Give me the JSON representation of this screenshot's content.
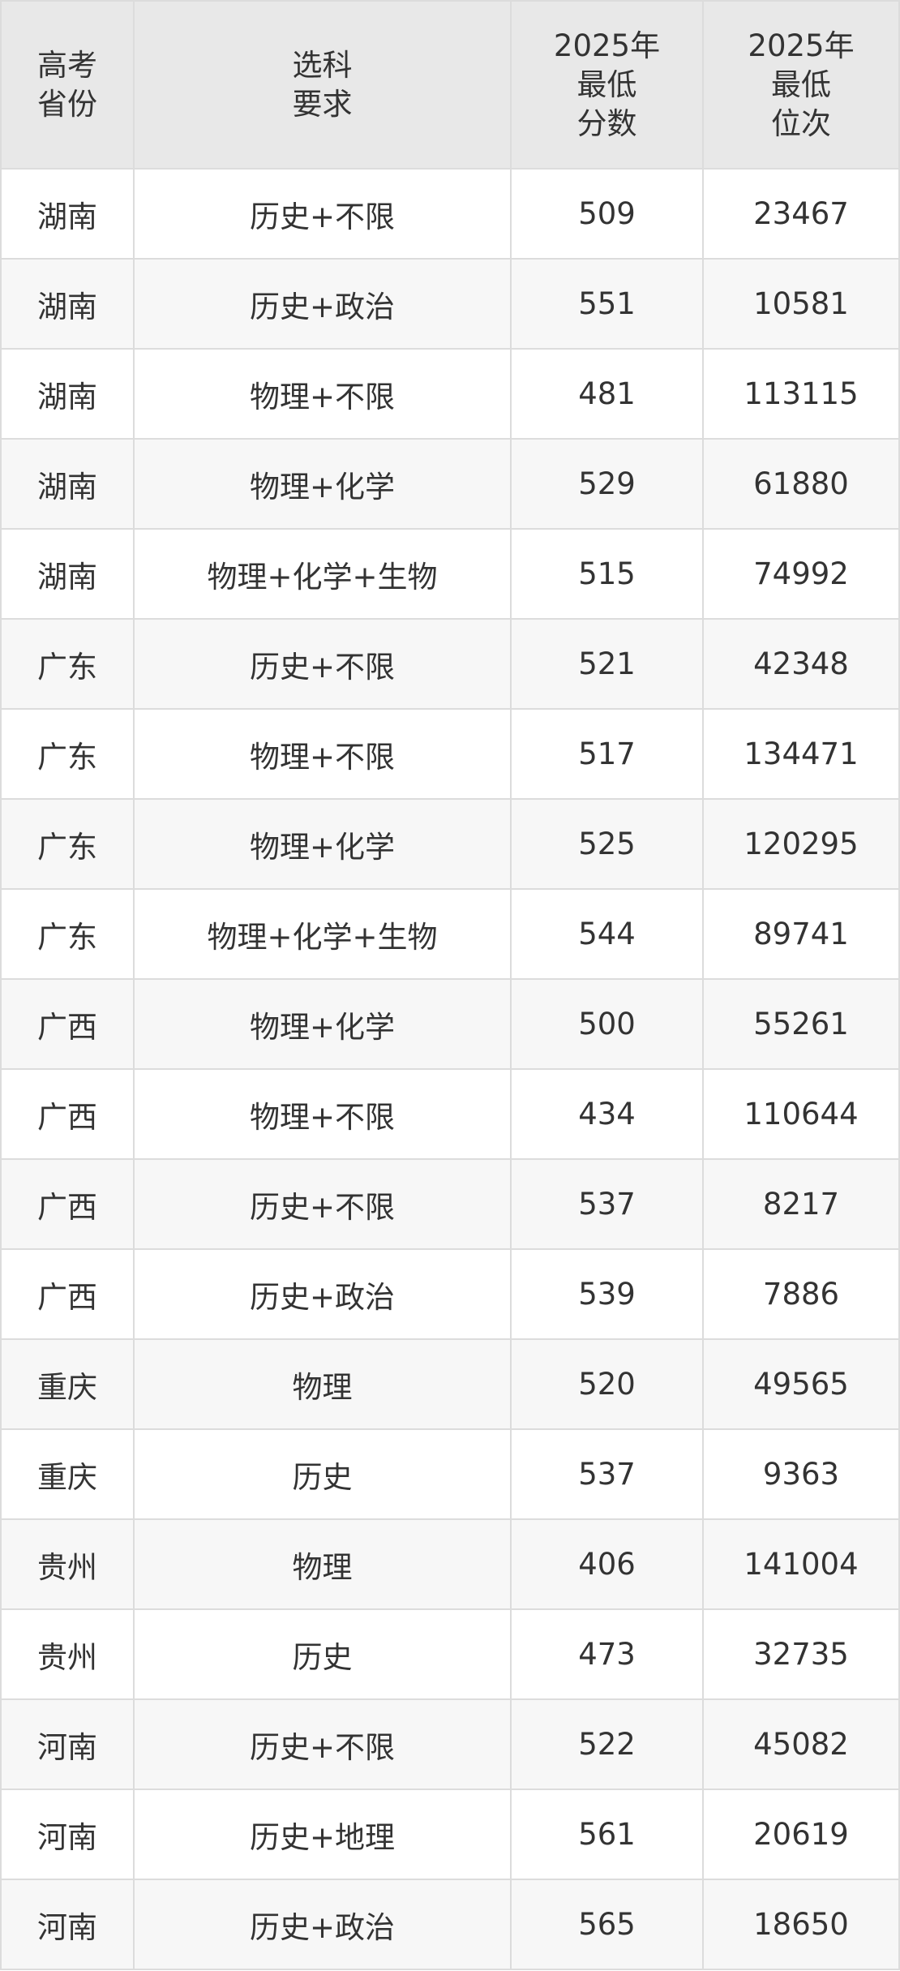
{
  "table": {
    "header": [
      [
        "高考",
        "省份"
      ],
      [
        "选科",
        "要求"
      ],
      [
        "2025年",
        "最低",
        "分数"
      ],
      [
        "2025年",
        "最低",
        "位次"
      ]
    ],
    "rows": [
      [
        "湖南",
        "历史+不限",
        509,
        23467
      ],
      [
        "湖南",
        "历史+政治",
        551,
        10581
      ],
      [
        "湖南",
        "物理+不限",
        481,
        113115
      ],
      [
        "湖南",
        "物理+化学",
        529,
        61880
      ],
      [
        "湖南",
        "物理+化学+生物",
        515,
        74992
      ],
      [
        "广东",
        "历史+不限",
        521,
        42348
      ],
      [
        "广东",
        "物理+不限",
        517,
        134471
      ],
      [
        "广东",
        "物理+化学",
        525,
        120295
      ],
      [
        "广东",
        "物理+化学+生物",
        544,
        89741
      ],
      [
        "广西",
        "物理+化学",
        500,
        55261
      ],
      [
        "广西",
        "物理+不限",
        434,
        110644
      ],
      [
        "广西",
        "历史+不限",
        537,
        8217
      ],
      [
        "广西",
        "历史+政治",
        539,
        7886
      ],
      [
        "重庆",
        "物理",
        520,
        49565
      ],
      [
        "重庆",
        "历史",
        537,
        9363
      ],
      [
        "贵州",
        "物理",
        406,
        141004
      ],
      [
        "贵州",
        "历史",
        473,
        32735
      ],
      [
        "河南",
        "历史+不限",
        522,
        45082
      ],
      [
        "河南",
        "历史+地理",
        561,
        20619
      ],
      [
        "河南",
        "历史+政治",
        565,
        18650
      ]
    ]
  }
}
